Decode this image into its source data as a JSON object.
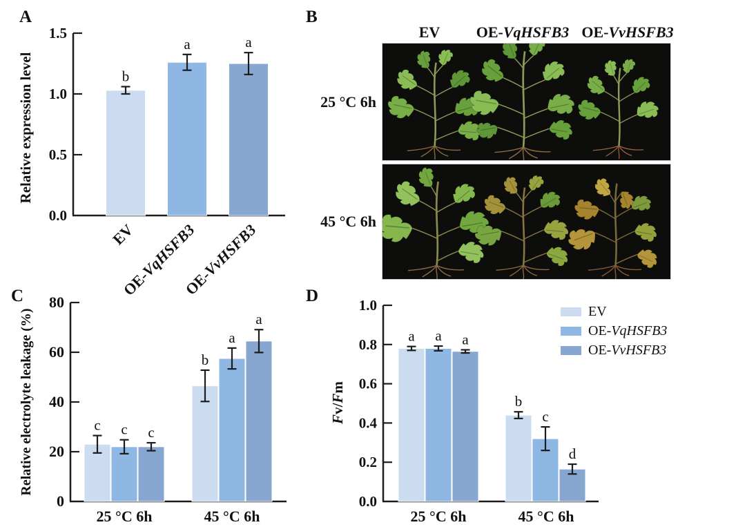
{
  "figure": {
    "panel_labels": {
      "a": "A",
      "b": "B",
      "c": "C",
      "d": "D"
    }
  },
  "colors": {
    "ev": "#cbdcf1",
    "vq": "#8fb7e3",
    "vv": "#87a6d0",
    "axis": "#1c1c1c",
    "photo_bg": "#0d0d0b"
  },
  "panel_b": {
    "columns": [
      {
        "segments": [
          {
            "t": "EV",
            "i": false
          }
        ]
      },
      {
        "segments": [
          {
            "t": "OE-",
            "i": false
          },
          {
            "t": "VqHSFB3",
            "i": true
          }
        ]
      },
      {
        "segments": [
          {
            "t": "OE-",
            "i": false
          },
          {
            "t": "VvHSFB3",
            "i": true
          }
        ]
      }
    ],
    "rows": [
      {
        "label": "25 °C 6h"
      },
      {
        "label": "45 °C 6h"
      }
    ]
  },
  "chart_data": [
    {
      "panel": "A",
      "type": "bar",
      "ylabel": "Relative expression level",
      "ylim": [
        0,
        1.5
      ],
      "yticks": [
        "0.0",
        "0.5",
        "1.0",
        "1.5"
      ],
      "categories": [
        {
          "segments": [
            {
              "t": "EV",
              "i": false
            }
          ]
        },
        {
          "segments": [
            {
              "t": "OE-",
              "i": false
            },
            {
              "t": "VqHSFB3",
              "i": true
            }
          ]
        },
        {
          "segments": [
            {
              "t": "OE-",
              "i": false
            },
            {
              "t": "VvHSFB3",
              "i": true
            }
          ]
        }
      ],
      "values": [
        1.03,
        1.26,
        1.25
      ],
      "errors": [
        0.03,
        0.065,
        0.09
      ],
      "letters": [
        "b",
        "a",
        "a"
      ],
      "bar_colors": [
        "ev",
        "vq",
        "vv"
      ]
    },
    {
      "panel": "C",
      "type": "bar",
      "ylabel": "Relative electrolyte leakage (%)",
      "ylim": [
        0,
        80
      ],
      "yticks": [
        "0",
        "20",
        "40",
        "60",
        "80"
      ],
      "categories": [
        "25 °C 6h",
        "45 °C 6h"
      ],
      "series": [
        {
          "name": "EV",
          "color": "ev",
          "values": [
            23,
            46.5
          ],
          "errors": [
            3.5,
            6.3
          ],
          "letters": [
            "c",
            "b"
          ]
        },
        {
          "name": "OE-VqHSFB3",
          "color": "vq",
          "values": [
            22,
            57.5
          ],
          "errors": [
            2.8,
            4.2
          ],
          "letters": [
            "c",
            "a"
          ]
        },
        {
          "name": "OE-VvHSFB3",
          "color": "vv",
          "values": [
            22,
            64.5
          ],
          "errors": [
            1.6,
            4.6
          ],
          "letters": [
            "c",
            "a"
          ]
        }
      ]
    },
    {
      "panel": "D",
      "type": "bar",
      "ylabel_rich": [
        {
          "t": "F",
          "i": true
        },
        {
          "t": "v/",
          "i": false
        },
        {
          "t": "F",
          "i": true
        },
        {
          "t": "m",
          "i": false
        }
      ],
      "ylim": [
        0,
        1.0
      ],
      "yticks": [
        "0.0",
        "0.2",
        "0.4",
        "0.6",
        "0.8",
        "1.0"
      ],
      "categories": [
        "25 °C 6h",
        "45 °C 6h"
      ],
      "series": [
        {
          "name": "EV",
          "color": "ev",
          "values": [
            0.78,
            0.44
          ],
          "errors": [
            0.01,
            0.017
          ],
          "letters": [
            "a",
            "b"
          ]
        },
        {
          "name": "OE-VqHSFB3",
          "color": "vq",
          "values": [
            0.78,
            0.32
          ],
          "errors": [
            0.012,
            0.06
          ],
          "letters": [
            "a",
            "c"
          ]
        },
        {
          "name": "OE-VvHSFB3",
          "color": "vv",
          "values": [
            0.765,
            0.165
          ],
          "errors": [
            0.008,
            0.025
          ],
          "letters": [
            "a",
            "d"
          ]
        }
      ],
      "legend": [
        {
          "color": "ev",
          "segments": [
            {
              "t": "EV",
              "i": false
            }
          ]
        },
        {
          "color": "vq",
          "segments": [
            {
              "t": "OE-",
              "i": false
            },
            {
              "t": "VqHSFB3",
              "i": true
            }
          ]
        },
        {
          "color": "vv",
          "segments": [
            {
              "t": "OE-",
              "i": false
            },
            {
              "t": "VvHSFB3",
              "i": true
            }
          ]
        }
      ]
    }
  ]
}
